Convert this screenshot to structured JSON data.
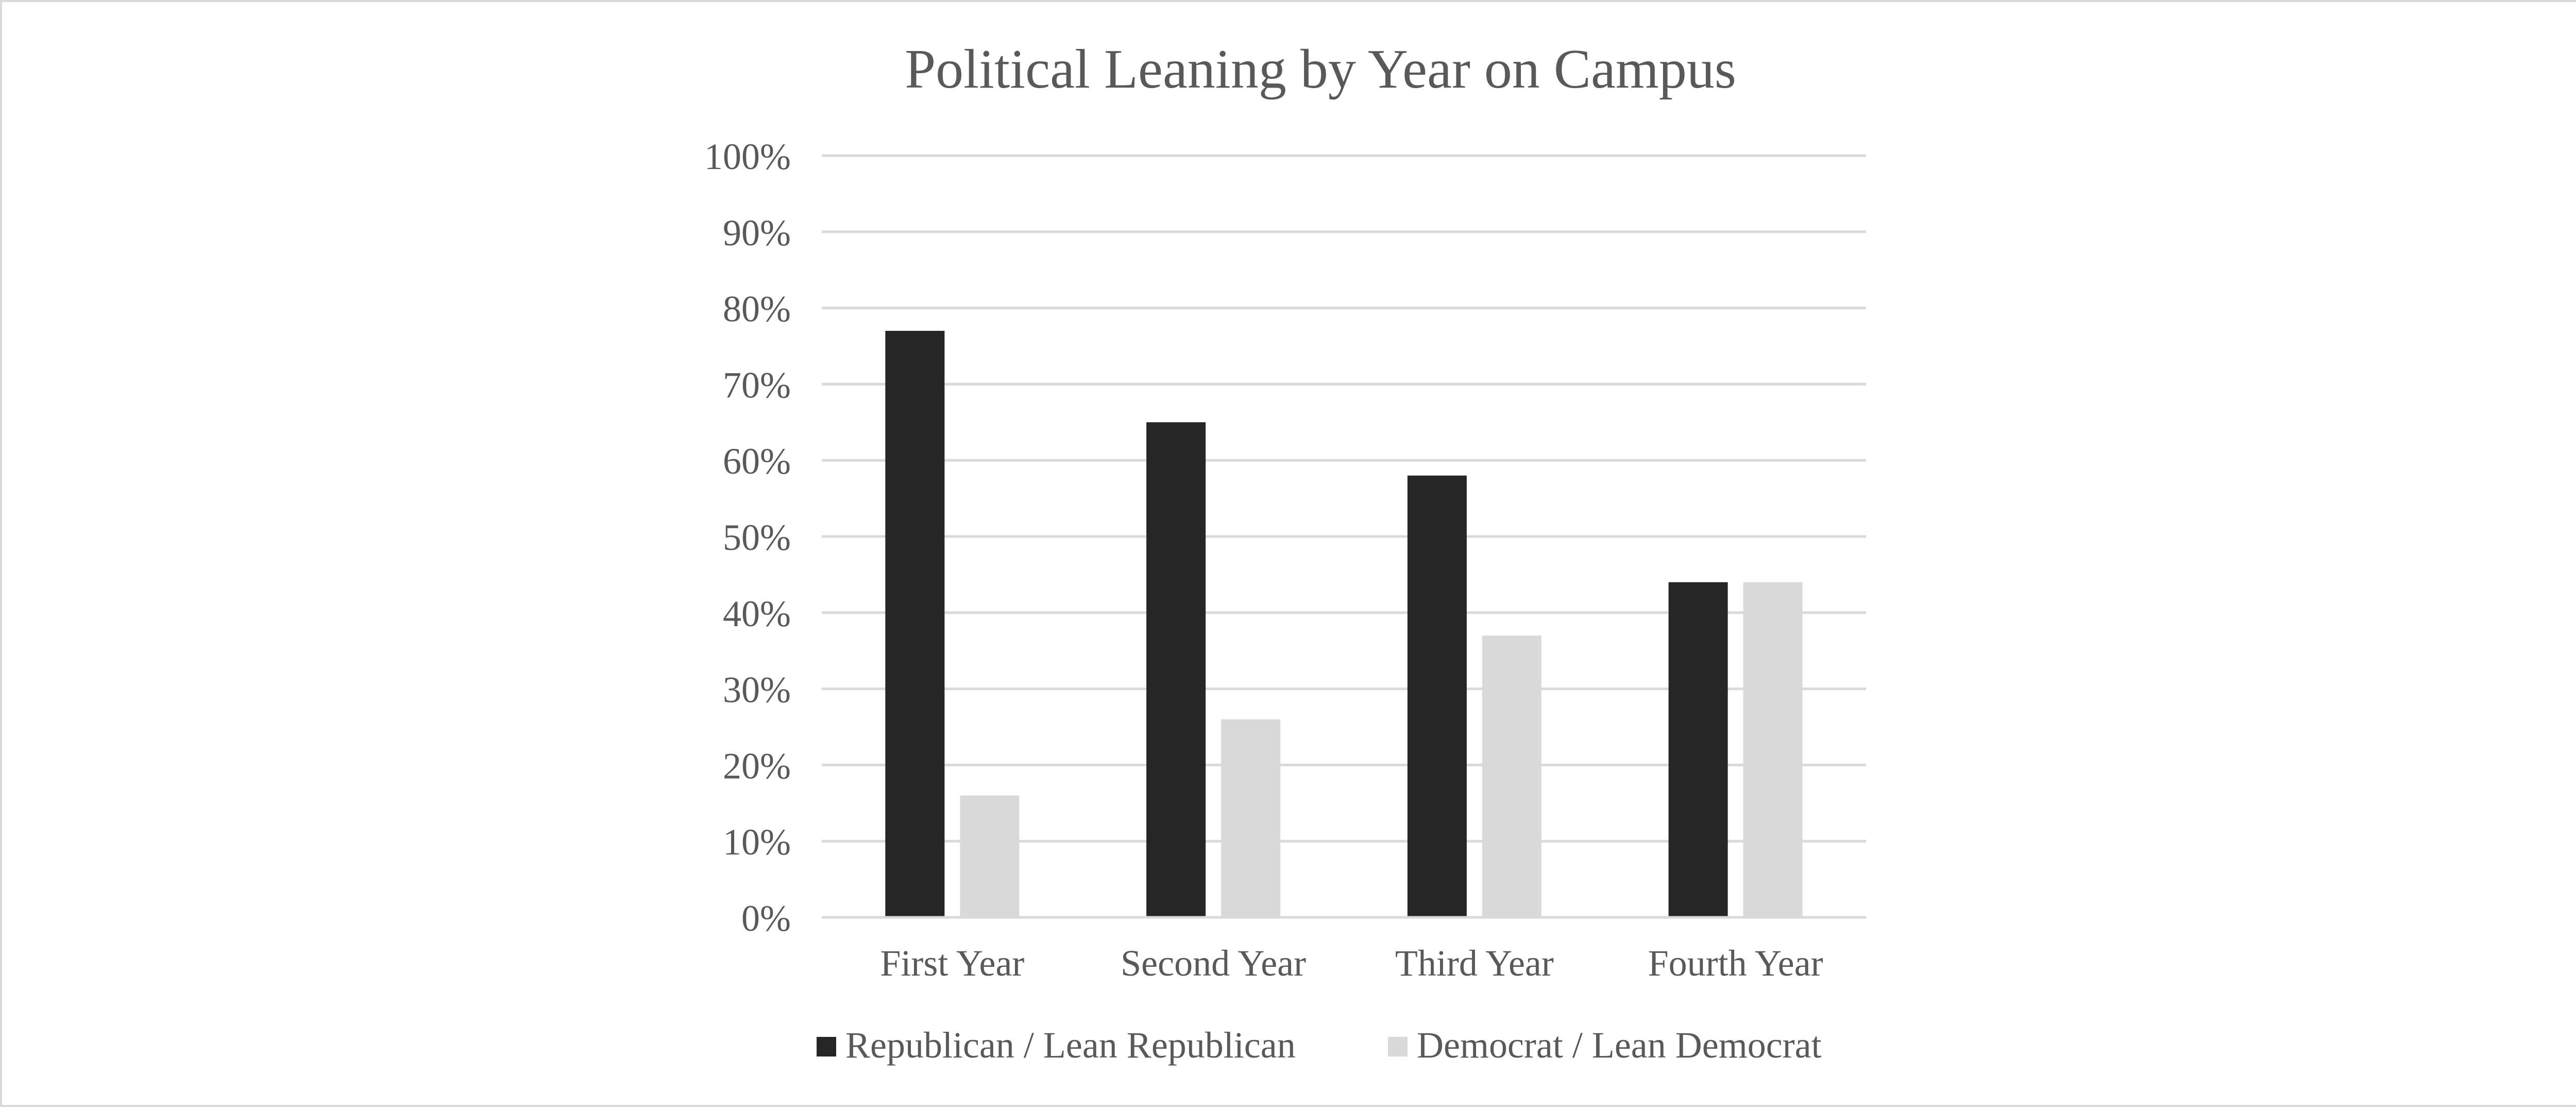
{
  "chart_data": {
    "type": "bar",
    "title": "Political Leaning by Year on Campus",
    "xlabel": "",
    "ylabel": "",
    "categories": [
      "First Year",
      "Second Year",
      "Third Year",
      "Fourth Year"
    ],
    "series": [
      {
        "name": "Republican / Lean Republican",
        "color": "#262626",
        "values": [
          77,
          65,
          58,
          44
        ]
      },
      {
        "name": "Democrat / Lean Democrat",
        "color": "#d9d9d9",
        "values": [
          16,
          26,
          37,
          44
        ]
      }
    ],
    "ylim": [
      0,
      100
    ],
    "yticks": [
      0,
      10,
      20,
      30,
      40,
      50,
      60,
      70,
      80,
      90,
      100
    ],
    "ytick_labels": [
      "0%",
      "10%",
      "20%",
      "30%",
      "40%",
      "50%",
      "60%",
      "70%",
      "80%",
      "90%",
      "100%"
    ],
    "grid": true,
    "legend_position": "bottom"
  }
}
